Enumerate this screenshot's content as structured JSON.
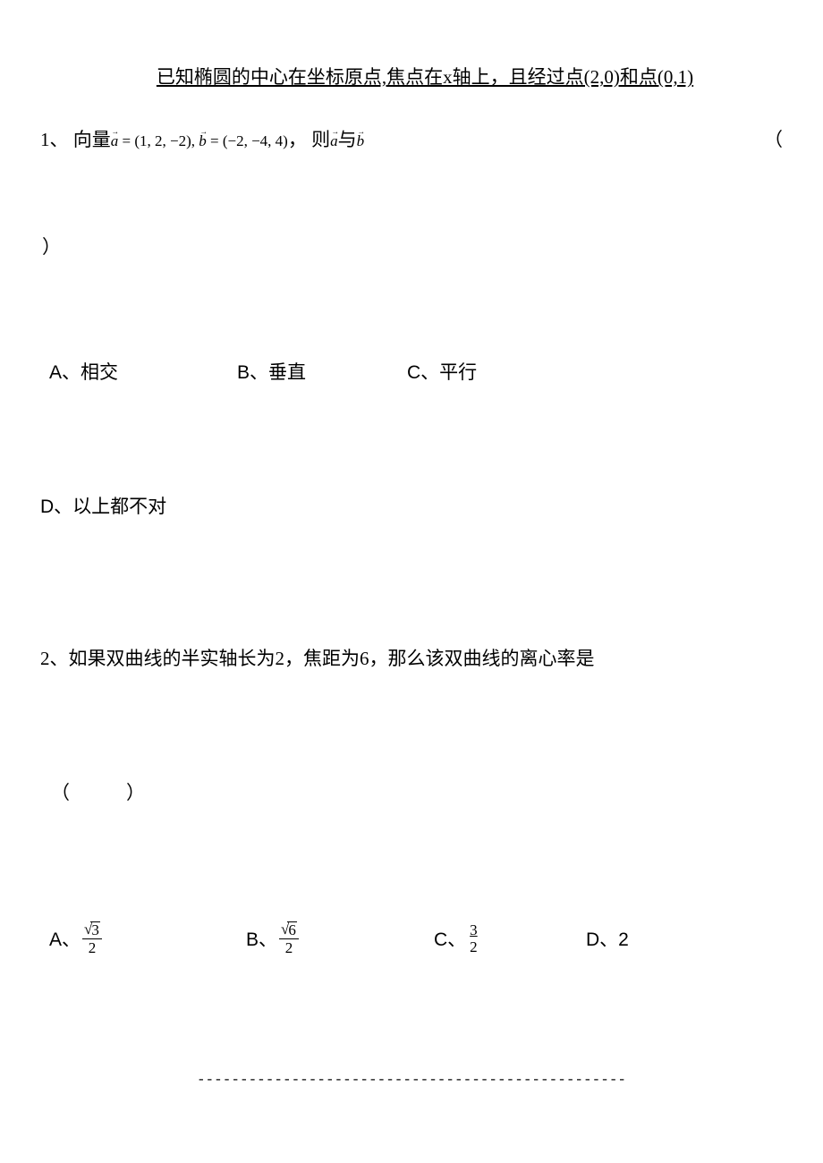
{
  "header": "已知椭圆的中心在坐标原点,焦点在x轴上，且经过点(2,0)和点(0,1)",
  "q1": {
    "prefix": "1、 向量",
    "vecA": "a",
    "eqA": " = (1, 2, −2), ",
    "vecB": "b",
    "eqB": " = (−2, −4, 4)",
    "mid": "， 则",
    "vecA2": "a",
    "and": "与",
    "vecB2": "b",
    "paren_open": "（",
    "paren_close": "）",
    "optA": "A、相交",
    "optB": "B、垂直",
    "optC": "C、平行",
    "optD": "D、以上都不对"
  },
  "q2": {
    "text": "2、如果双曲线的半实轴长为2，焦距为6，那么该双曲线的离心率是",
    "paren": "（　　　）",
    "optA_label": "A、",
    "optA_sqrt": "3",
    "optA_den": "2",
    "optB_label": "B、",
    "optB_sqrt": "6",
    "optB_den": "2",
    "optC_label": "C、",
    "optC_num": "3",
    "optC_den": "2",
    "optD": "D、2"
  },
  "footer": "--------------------------------------------------"
}
